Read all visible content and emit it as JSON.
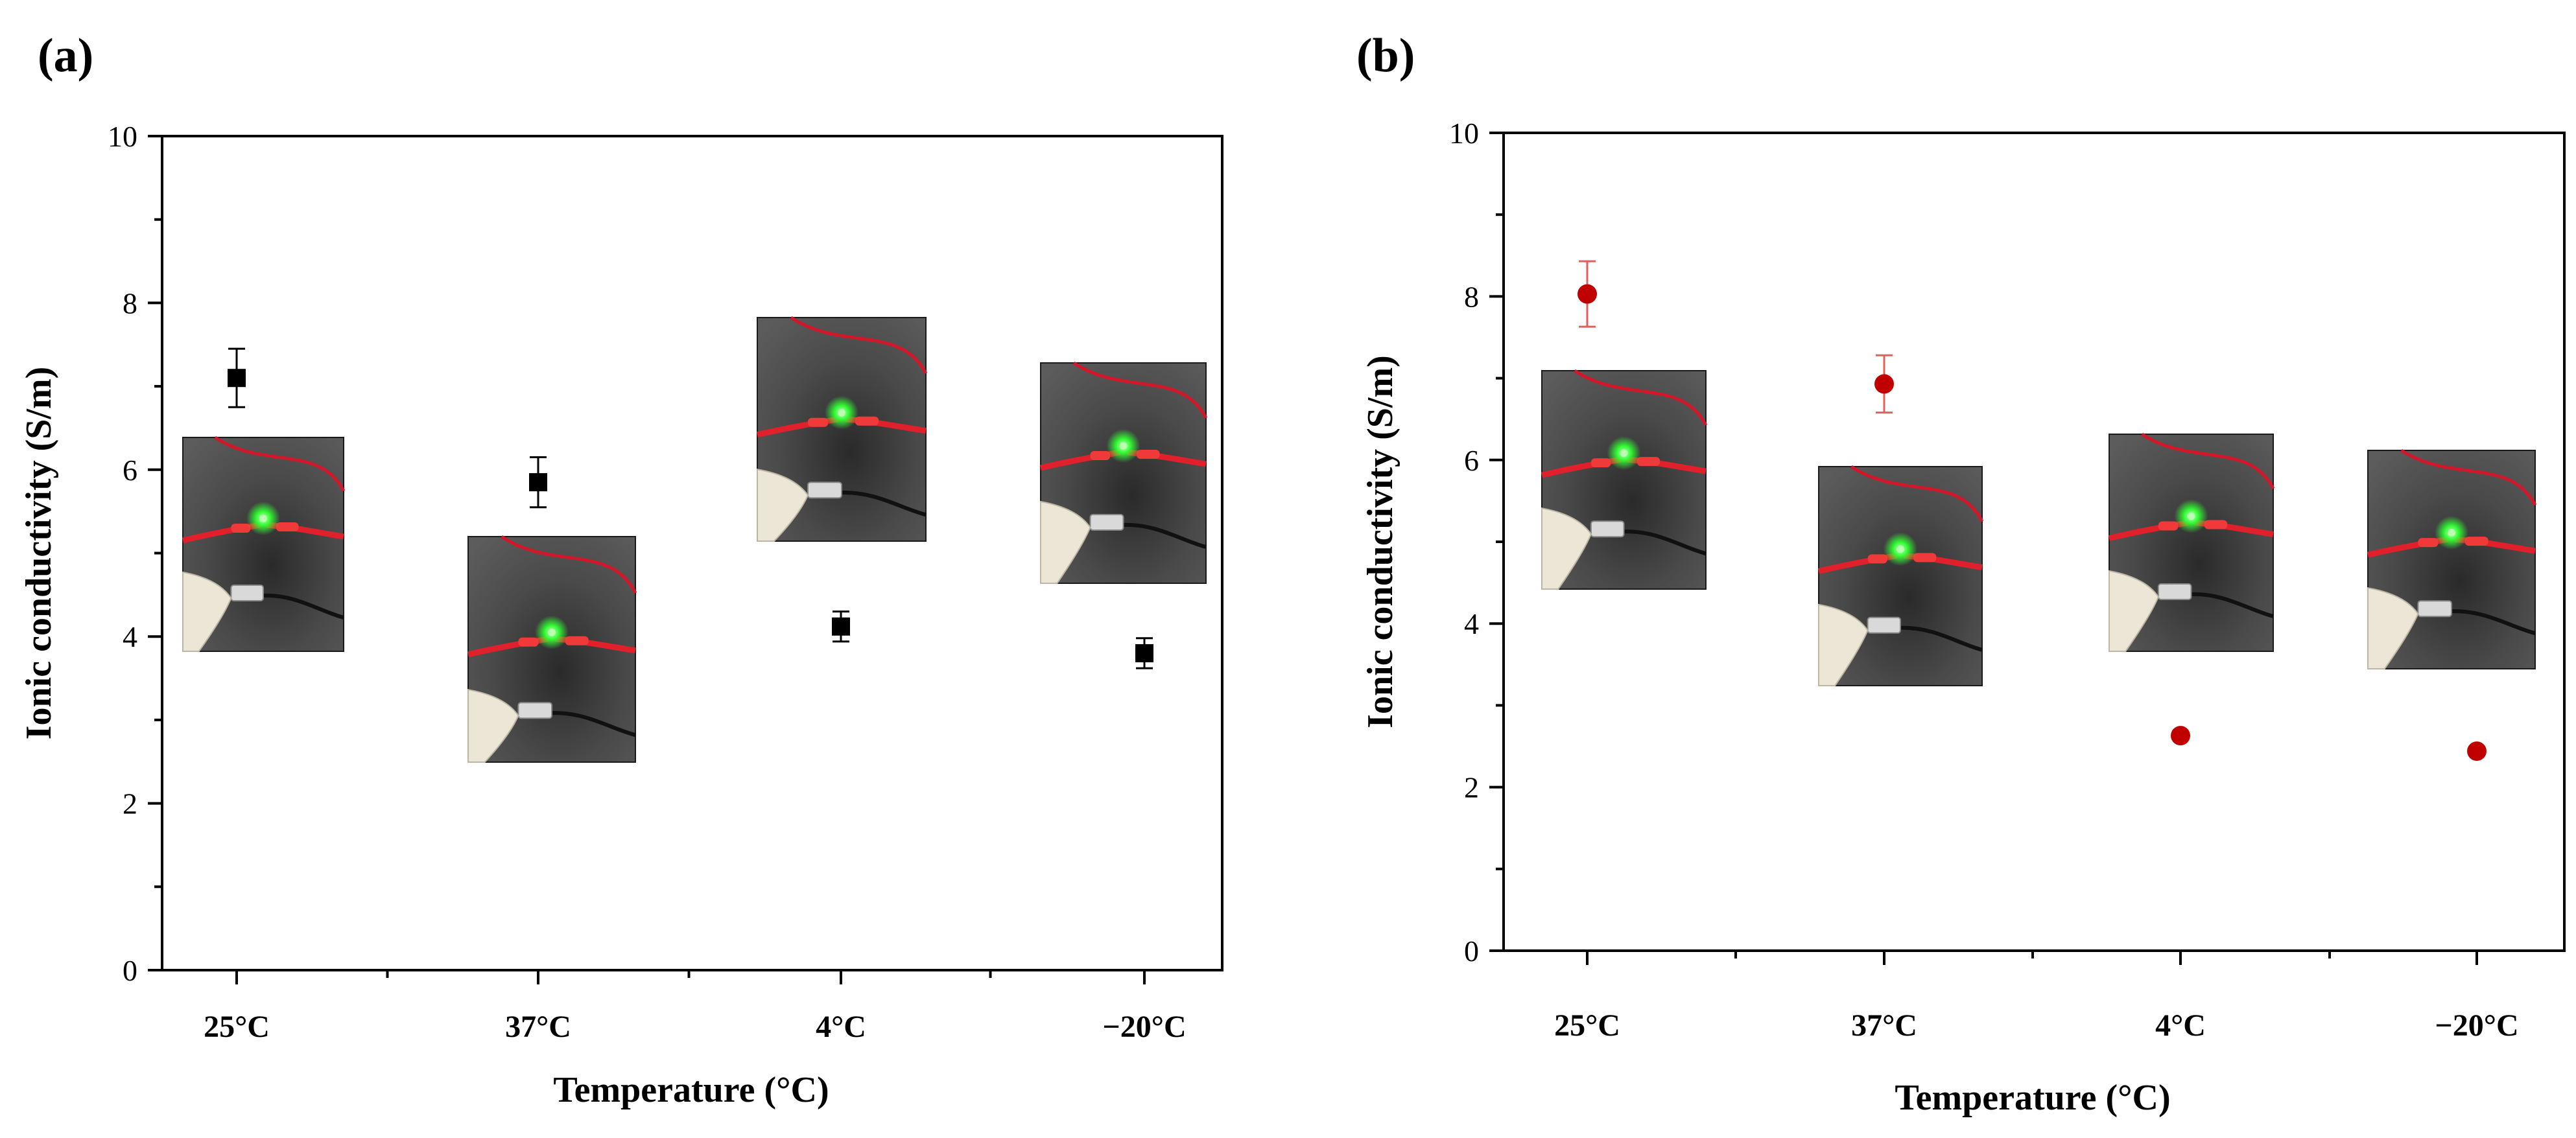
{
  "chart_data": [
    {
      "panel": "(a)",
      "type": "scatter",
      "xlabel": "Temperature (°C)",
      "ylabel": "Ionic conductivity (S/m)",
      "categories": [
        "25°C",
        "37°C",
        "4°C",
        "−20°C"
      ],
      "values": [
        7.1,
        5.85,
        4.12,
        3.8
      ],
      "errors": [
        0.35,
        0.3,
        0.18,
        0.18
      ],
      "ylim": [
        0,
        10
      ],
      "yticks": [
        0,
        2,
        4,
        6,
        8,
        10
      ],
      "marker": "square",
      "color": "#000000",
      "inset_photos": 4
    },
    {
      "panel": "(b)",
      "type": "scatter",
      "xlabel": "Temperature (°C)",
      "ylabel": "Ionic conductivity (S/m)",
      "categories": [
        "25°C",
        "37°C",
        "4°C",
        "−20°C"
      ],
      "values": [
        8.03,
        6.93,
        2.63,
        2.44
      ],
      "errors": [
        0.4,
        0.35,
        0.05,
        0.05
      ],
      "ylim": [
        0,
        10
      ],
      "yticks": [
        0,
        2,
        4,
        6,
        8,
        10
      ],
      "marker": "circle",
      "color": "#c00000",
      "inset_photos": 4
    }
  ]
}
